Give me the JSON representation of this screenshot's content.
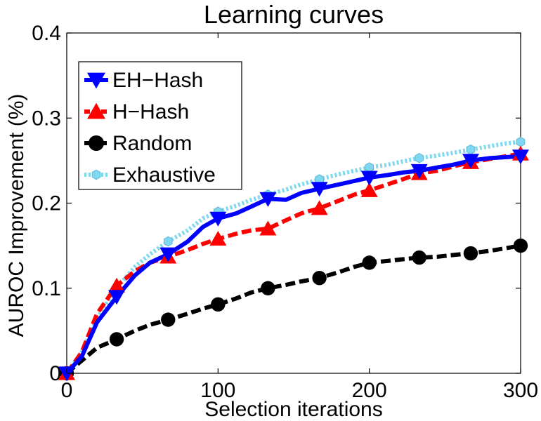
{
  "chart_data": {
    "type": "line",
    "title": "Learning curves",
    "xlabel": "Selection iterations",
    "ylabel": "AUROC Improvement (%)",
    "xlim": [
      0,
      300
    ],
    "ylim": [
      0,
      0.4
    ],
    "xticks": [
      0,
      100,
      200,
      300
    ],
    "xtick_labels": [
      "0",
      "100",
      "200",
      "300"
    ],
    "yticks": [
      0,
      0.1,
      0.2,
      0.3,
      0.4
    ],
    "ytick_labels": [
      "0",
      "0.1",
      "0.2",
      "0.3",
      "0.4"
    ],
    "grid": false,
    "legend_position": "top-left",
    "series": [
      {
        "name": "EH−Hash",
        "color": "#0000ff",
        "marker": "triangle-down",
        "line_style": "solid",
        "x": [
          0,
          10,
          20,
          33,
          45,
          55,
          67,
          80,
          90,
          100,
          112,
          122,
          133,
          145,
          155,
          167,
          180,
          190,
          200,
          212,
          222,
          233,
          245,
          255,
          267,
          280,
          290,
          300
        ],
        "y": [
          0,
          0.02,
          0.06,
          0.09,
          0.115,
          0.13,
          0.14,
          0.155,
          0.172,
          0.182,
          0.188,
          0.196,
          0.205,
          0.204,
          0.212,
          0.217,
          0.222,
          0.226,
          0.23,
          0.233,
          0.236,
          0.238,
          0.242,
          0.245,
          0.25,
          0.253,
          0.254,
          0.255
        ],
        "marker_x": [
          0,
          33,
          67,
          100,
          133,
          167,
          200,
          233,
          267,
          300
        ],
        "marker_y": [
          0,
          0.09,
          0.14,
          0.182,
          0.205,
          0.217,
          0.23,
          0.238,
          0.25,
          0.255
        ]
      },
      {
        "name": "H−Hash",
        "color": "#ff0000",
        "marker": "triangle-up",
        "line_style": "dashed",
        "x": [
          0,
          10,
          20,
          33,
          45,
          55,
          67,
          80,
          90,
          100,
          112,
          122,
          133,
          145,
          155,
          167,
          180,
          190,
          200,
          212,
          222,
          233,
          245,
          255,
          267,
          280,
          290,
          300
        ],
        "y": [
          0,
          0.025,
          0.07,
          0.103,
          0.12,
          0.13,
          0.137,
          0.145,
          0.152,
          0.158,
          0.164,
          0.168,
          0.17,
          0.18,
          0.188,
          0.194,
          0.203,
          0.21,
          0.215,
          0.222,
          0.228,
          0.235,
          0.238,
          0.243,
          0.248,
          0.252,
          0.255,
          0.258
        ],
        "marker_x": [
          0,
          33,
          67,
          100,
          133,
          167,
          200,
          233,
          267,
          300
        ],
        "marker_y": [
          0,
          0.103,
          0.137,
          0.158,
          0.17,
          0.194,
          0.215,
          0.235,
          0.248,
          0.258
        ]
      },
      {
        "name": "Random",
        "color": "#000000",
        "marker": "circle",
        "line_style": "dashed",
        "x": [
          0,
          10,
          20,
          33,
          45,
          55,
          67,
          80,
          90,
          100,
          112,
          122,
          133,
          145,
          155,
          167,
          180,
          190,
          200,
          212,
          222,
          233,
          245,
          255,
          267,
          280,
          290,
          300
        ],
        "y": [
          0,
          0.015,
          0.03,
          0.04,
          0.05,
          0.057,
          0.063,
          0.07,
          0.076,
          0.081,
          0.088,
          0.095,
          0.1,
          0.104,
          0.108,
          0.112,
          0.119,
          0.125,
          0.13,
          0.132,
          0.134,
          0.136,
          0.137,
          0.139,
          0.141,
          0.144,
          0.147,
          0.15
        ],
        "marker_x": [
          0,
          33,
          67,
          100,
          133,
          167,
          200,
          233,
          267,
          300
        ],
        "marker_y": [
          0,
          0.04,
          0.063,
          0.081,
          0.1,
          0.112,
          0.13,
          0.136,
          0.141,
          0.15
        ]
      },
      {
        "name": "Exhaustive",
        "color": "#7fd8f0",
        "marker": "hexagon",
        "line_style": "dotted",
        "x": [
          0,
          10,
          20,
          33,
          45,
          55,
          67,
          80,
          90,
          100,
          112,
          122,
          133,
          145,
          155,
          167,
          180,
          190,
          200,
          212,
          222,
          233,
          245,
          255,
          267,
          280,
          290,
          300
        ],
        "y": [
          0,
          0.025,
          0.065,
          0.1,
          0.125,
          0.14,
          0.155,
          0.168,
          0.182,
          0.19,
          0.197,
          0.204,
          0.21,
          0.216,
          0.222,
          0.228,
          0.234,
          0.238,
          0.242,
          0.245,
          0.249,
          0.253,
          0.256,
          0.259,
          0.263,
          0.267,
          0.27,
          0.272
        ],
        "marker_x": [
          0,
          33,
          67,
          100,
          133,
          167,
          200,
          233,
          267,
          300
        ],
        "marker_y": [
          0,
          0.1,
          0.155,
          0.19,
          0.21,
          0.228,
          0.242,
          0.253,
          0.263,
          0.272
        ]
      }
    ]
  }
}
